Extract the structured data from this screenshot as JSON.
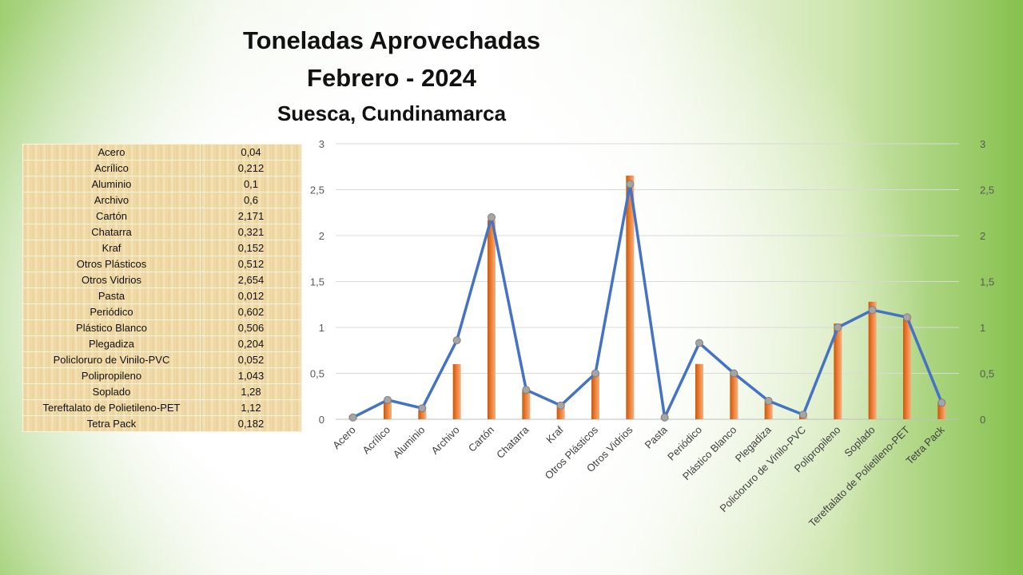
{
  "chart_data": {
    "type": "bar",
    "title": "Toneladas Aprovechadas",
    "subtitle": "Febrero - 2024",
    "location": "Suesca, Cundinamarca",
    "categories": [
      "Acero",
      "Acrílico",
      "Aluminio",
      "Archivo",
      "Cartón",
      "Chatarra",
      "Kraf",
      "Otros Plásticos",
      "Otros Vidrios",
      "Pasta",
      "Periódico",
      "Plástico Blanco",
      "Plegadiza",
      "Policloruro de Vinilo-PVC",
      "Polipropileno",
      "Soplado",
      "Tereftalato de Polietileno-PET",
      "Tetra Pack"
    ],
    "values": [
      0.04,
      0.212,
      0.1,
      0.6,
      2.171,
      0.321,
      0.152,
      0.512,
      2.654,
      0.012,
      0.602,
      0.506,
      0.204,
      0.052,
      1.043,
      1.28,
      1.12,
      0.182
    ],
    "line_values": [
      0.02,
      0.21,
      0.12,
      0.86,
      2.2,
      0.32,
      0.15,
      0.5,
      2.56,
      0.02,
      0.83,
      0.5,
      0.2,
      0.05,
      1.0,
      1.19,
      1.11,
      0.18
    ],
    "ylim": [
      0,
      3
    ],
    "yticks": [
      "0",
      "0,5",
      "1",
      "1,5",
      "2",
      "2,5",
      "3"
    ],
    "grid": true,
    "secondary_axis": true,
    "colors": {
      "bar": "#ed7d31",
      "line": "#4472c4",
      "marker": "#a5a5a5"
    }
  },
  "table": {
    "rows": [
      {
        "name": "Acero",
        "value": "0,04"
      },
      {
        "name": "Acrílico",
        "value": "0,212"
      },
      {
        "name": "Aluminio",
        "value": "0,1"
      },
      {
        "name": "Archivo",
        "value": "0,6"
      },
      {
        "name": "Cartón",
        "value": "2,171"
      },
      {
        "name": "Chatarra",
        "value": "0,321"
      },
      {
        "name": "Kraf",
        "value": "0,152"
      },
      {
        "name": "Otros Plásticos",
        "value": "0,512"
      },
      {
        "name": "Otros Vidrios",
        "value": "2,654"
      },
      {
        "name": "Pasta",
        "value": "0,012"
      },
      {
        "name": "Periódico",
        "value": "0,602"
      },
      {
        "name": "Plástico Blanco",
        "value": "0,506"
      },
      {
        "name": "Plegadiza",
        "value": "0,204"
      },
      {
        "name": "Policloruro de Vinilo-PVC",
        "value": "0,052"
      },
      {
        "name": "Polipropileno",
        "value": "1,043"
      },
      {
        "name": "Soplado",
        "value": "1,28"
      },
      {
        "name": "Tereftalato de Polietileno-PET",
        "value": "1,12"
      },
      {
        "name": "Tetra Pack",
        "value": "0,182"
      }
    ]
  }
}
